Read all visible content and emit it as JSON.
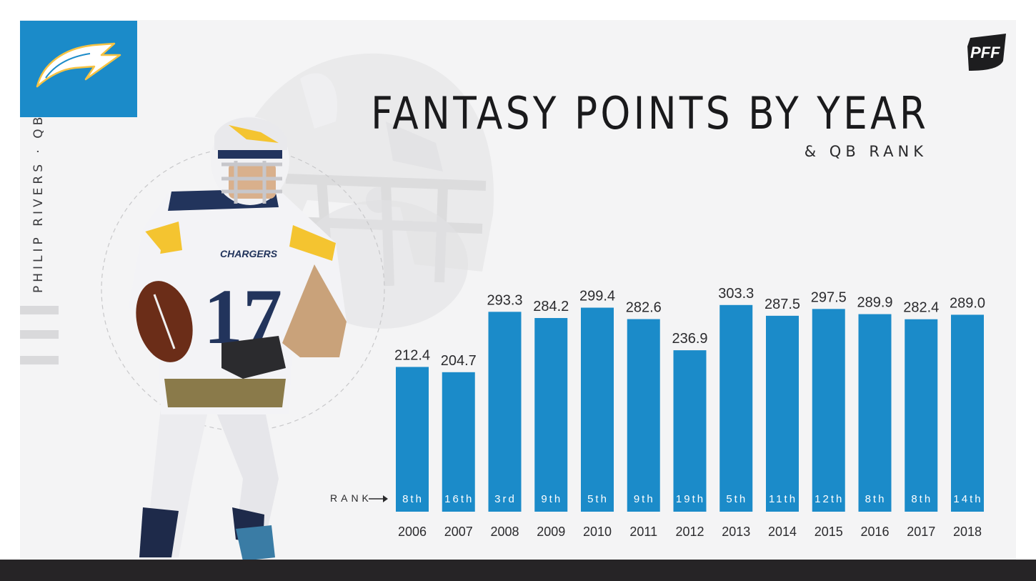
{
  "header": {
    "title": "FANTASY POINTS BY YEAR",
    "subtitle": "& QB RANK"
  },
  "player": {
    "label": "PHILIP RIVERS · QB"
  },
  "brand": {
    "team_logo": "chargers-bolt-icon",
    "publisher_logo": "pff-logo",
    "publisher_text": "PFF"
  },
  "colors": {
    "bar": "#1b8bc9",
    "logo_bg": "#1b8bc9",
    "panel_bg": "#f4f4f5",
    "footer": "#262426"
  },
  "rank_prefix": "RANK",
  "chart_data": {
    "type": "bar",
    "title": "FANTASY POINTS BY YEAR",
    "subtitle": "& QB RANK",
    "categories": [
      "2006",
      "2007",
      "2008",
      "2009",
      "2010",
      "2011",
      "2012",
      "2013",
      "2014",
      "2015",
      "2016",
      "2017",
      "2018"
    ],
    "values": [
      212.4,
      204.7,
      293.3,
      284.2,
      299.4,
      282.6,
      236.9,
      303.3,
      287.5,
      297.5,
      289.9,
      282.4,
      289.0
    ],
    "value_labels": [
      "212.4",
      "204.7",
      "293.3",
      "284.2",
      "299.4",
      "282.6",
      "236.9",
      "303.3",
      "287.5",
      "297.5",
      "289.9",
      "282.4",
      "289.0"
    ],
    "ranks": [
      "8th",
      "16th",
      "3rd",
      "9th",
      "5th",
      "9th",
      "19th",
      "5th",
      "11th",
      "12th",
      "8th",
      "8th",
      "14th"
    ],
    "xlabel": "",
    "ylabel": "",
    "ylim": [
      0,
      340
    ],
    "grid": false,
    "legend": "none"
  }
}
